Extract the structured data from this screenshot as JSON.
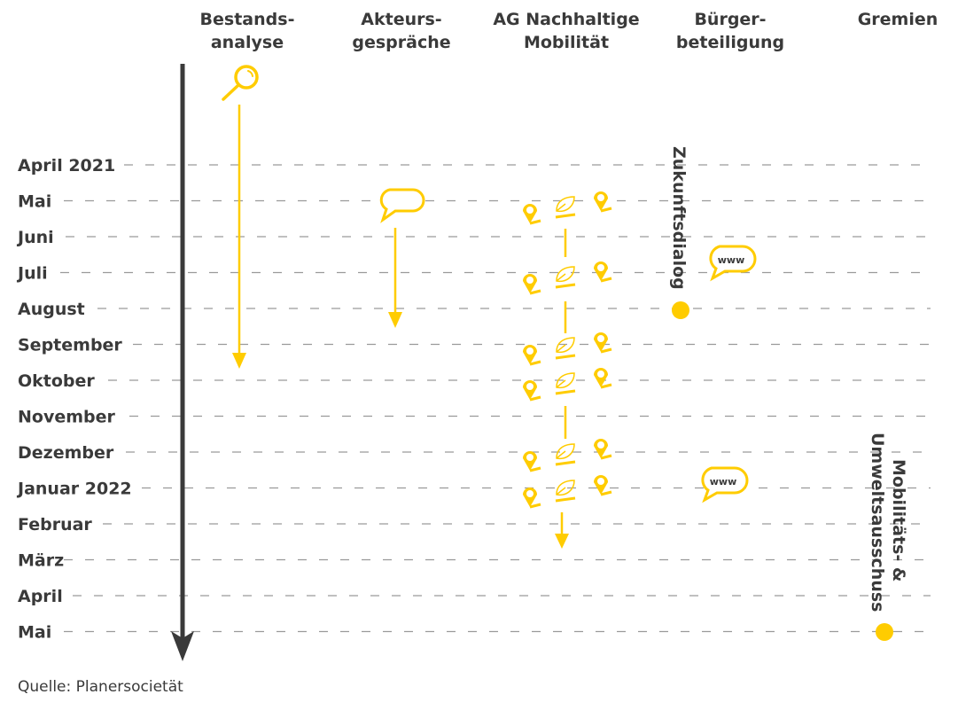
{
  "columns": [
    {
      "line1": "Bestands-",
      "line2": "analyse"
    },
    {
      "line1": "Akteurs-",
      "line2": "gespräche"
    },
    {
      "line1": "AG Nachhaltige",
      "line2": "Mobilität"
    },
    {
      "line1": "Bürger-",
      "line2": "beteiligung"
    },
    {
      "line1": "Gremien",
      "line2": ""
    }
  ],
  "months": [
    "April 2021",
    "Mai",
    "Juni",
    "Juli",
    "August",
    "September",
    "Oktober",
    "November",
    "Dezember",
    "Januar 2022",
    "Februar",
    "März",
    "April",
    "Mai"
  ],
  "events": {
    "zukunftsdialog": "Zukunftsdialog",
    "www_label": "www",
    "gremien_line1": "Mobilitäts- &",
    "gremien_line2": "Umweltsausschuss"
  },
  "icons": {
    "bestandsanalyse": "magnifier-icon",
    "akteursgespraeche": "speech-bubble-icon",
    "ag": [
      "map-pin-icon",
      "leaf-icon",
      "map-pin-icon"
    ],
    "buergerbeteiligung": "www-bubble-icon",
    "milestone": "dot-icon"
  },
  "source": "Quelle: Planersocietät",
  "colors": {
    "accent": "#FFCC00",
    "text": "#3a3a3a",
    "axis": "#3a3a3a",
    "dash": "#9a9a9a"
  }
}
